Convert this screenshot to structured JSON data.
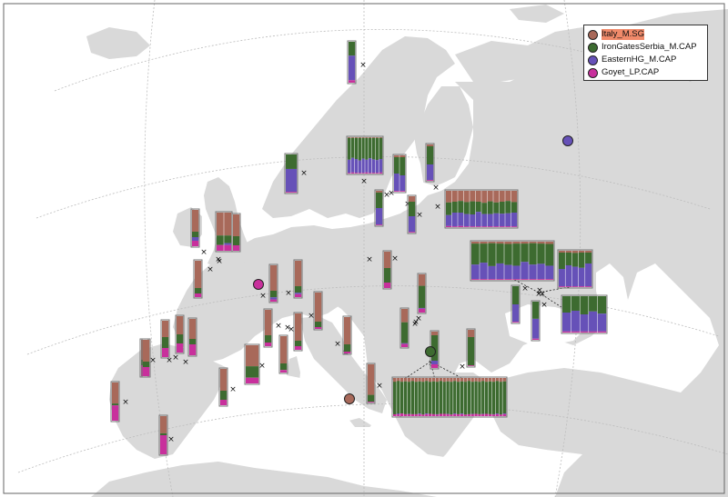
{
  "colors": {
    "background": "#ffffff",
    "land": "#d9d9d9",
    "graticule": "#bdbdbd",
    "cross": "#111111",
    "leader": "#222222",
    "bar_outline": "#777777"
  },
  "legend": {
    "items": [
      {
        "label": "Italy_M.SG",
        "color": "#a8695a",
        "highlighted": true
      },
      {
        "label": "IronGatesSerbia_M.CAP",
        "color": "#3d6b30",
        "highlighted": false
      },
      {
        "label": "EasternHG_M.CAP",
        "color": "#6651b8",
        "highlighted": false
      },
      {
        "label": "Goyet_LP.CAP",
        "color": "#c8309c",
        "highlighted": false
      }
    ]
  },
  "reference_points": [
    {
      "name": "reference-point-goyet",
      "color": "#c8309c"
    },
    {
      "name": "reference-point-eastern-hg",
      "color": "#6651b8"
    },
    {
      "name": "reference-point-iron-gates",
      "color": "#3d6b30"
    },
    {
      "name": "reference-point-italy",
      "color": "#a8695a"
    }
  ],
  "samples": [
    {
      "site": "north-norway",
      "fractions": [
        [
          0.0,
          0.34,
          0.6,
          0.06
        ]
      ]
    },
    {
      "site": "south-norway",
      "fractions": [
        [
          0.0,
          0.38,
          0.6,
          0.02
        ]
      ]
    },
    {
      "site": "sweden-central",
      "fractions": [
        [
          0.02,
          0.6,
          0.36,
          0.02
        ],
        [
          0.02,
          0.55,
          0.4,
          0.03
        ],
        [
          0.02,
          0.58,
          0.38,
          0.02
        ],
        [
          0.02,
          0.62,
          0.34,
          0.02
        ],
        [
          0.02,
          0.57,
          0.39,
          0.02
        ],
        [
          0.02,
          0.6,
          0.35,
          0.03
        ],
        [
          0.02,
          0.56,
          0.4,
          0.02
        ],
        [
          0.02,
          0.59,
          0.37,
          0.02
        ],
        [
          0.02,
          0.61,
          0.35,
          0.02
        ],
        [
          0.02,
          0.58,
          0.37,
          0.03
        ]
      ]
    },
    {
      "site": "sweden-gotland",
      "fractions": [
        [
          0.05,
          0.45,
          0.48,
          0.02
        ],
        [
          0.05,
          0.5,
          0.43,
          0.02
        ]
      ]
    },
    {
      "site": "estonia",
      "fractions": [
        [
          0.05,
          0.5,
          0.43,
          0.02
        ]
      ]
    },
    {
      "site": "sweden-south",
      "fractions": [
        [
          0.05,
          0.45,
          0.48,
          0.02
        ]
      ]
    },
    {
      "site": "latvia",
      "fractions": [
        [
          0.15,
          0.4,
          0.43,
          0.02
        ]
      ]
    },
    {
      "site": "baltic-big",
      "fractions": [
        [
          0.32,
          0.35,
          0.3,
          0.03
        ],
        [
          0.3,
          0.3,
          0.38,
          0.02
        ],
        [
          0.28,
          0.32,
          0.37,
          0.03
        ],
        [
          0.31,
          0.33,
          0.34,
          0.02
        ],
        [
          0.29,
          0.36,
          0.33,
          0.02
        ],
        [
          0.3,
          0.28,
          0.4,
          0.02
        ],
        [
          0.33,
          0.31,
          0.34,
          0.02
        ],
        [
          0.29,
          0.35,
          0.34,
          0.02
        ],
        [
          0.32,
          0.3,
          0.36,
          0.02
        ],
        [
          0.3,
          0.33,
          0.35,
          0.02
        ],
        [
          0.28,
          0.34,
          0.36,
          0.02
        ],
        [
          0.31,
          0.29,
          0.38,
          0.02
        ]
      ]
    },
    {
      "site": "ireland",
      "fractions": [
        [
          0.6,
          0.15,
          0.1,
          0.15
        ]
      ]
    },
    {
      "site": "britain-a",
      "fractions": [
        [
          0.6,
          0.25,
          0.0,
          0.15
        ],
        [
          0.6,
          0.2,
          0.05,
          0.15
        ]
      ]
    },
    {
      "site": "britain-b",
      "fractions": [
        [
          0.6,
          0.25,
          0.0,
          0.15
        ]
      ]
    },
    {
      "site": "france-brittany",
      "fractions": [
        [
          0.75,
          0.15,
          0.0,
          0.1
        ]
      ]
    },
    {
      "site": "france-paris",
      "fractions": [
        [
          0.7,
          0.18,
          0.06,
          0.06
        ]
      ]
    },
    {
      "site": "germany-west",
      "fractions": [
        [
          0.7,
          0.18,
          0.04,
          0.08
        ]
      ]
    },
    {
      "site": "poland",
      "fractions": [
        [
          0.45,
          0.4,
          0.0,
          0.15
        ]
      ]
    },
    {
      "site": "ukraine-big",
      "fractions": [
        [
          0.05,
          0.55,
          0.38,
          0.02
        ],
        [
          0.05,
          0.5,
          0.43,
          0.02
        ],
        [
          0.04,
          0.6,
          0.34,
          0.02
        ],
        [
          0.05,
          0.52,
          0.41,
          0.02
        ],
        [
          0.06,
          0.55,
          0.37,
          0.02
        ],
        [
          0.05,
          0.58,
          0.35,
          0.02
        ],
        [
          0.05,
          0.48,
          0.45,
          0.02
        ],
        [
          0.04,
          0.56,
          0.38,
          0.02
        ],
        [
          0.05,
          0.53,
          0.4,
          0.02
        ],
        [
          0.06,
          0.57,
          0.35,
          0.02
        ]
      ]
    },
    {
      "site": "ukraine-east",
      "fractions": [
        [
          0.05,
          0.45,
          0.48,
          0.02
        ],
        [
          0.05,
          0.35,
          0.58,
          0.02
        ],
        [
          0.06,
          0.38,
          0.54,
          0.02
        ],
        [
          0.05,
          0.42,
          0.51,
          0.02
        ],
        [
          0.05,
          0.3,
          0.63,
          0.02
        ]
      ]
    },
    {
      "site": "russia-south",
      "fractions": [
        [
          0.0,
          0.45,
          0.52,
          0.03
        ],
        [
          0.0,
          0.4,
          0.57,
          0.03
        ],
        [
          0.0,
          0.5,
          0.47,
          0.03
        ],
        [
          0.0,
          0.42,
          0.55,
          0.03
        ],
        [
          0.0,
          0.48,
          0.49,
          0.03
        ]
      ]
    },
    {
      "site": "ukraine-a",
      "fractions": [
        [
          0.0,
          0.5,
          0.48,
          0.02
        ]
      ]
    },
    {
      "site": "ukraine-b",
      "fractions": [
        [
          0.0,
          0.45,
          0.52,
          0.03
        ]
      ]
    },
    {
      "site": "hungary-north",
      "fractions": [
        [
          0.3,
          0.58,
          0.02,
          0.1
        ]
      ]
    },
    {
      "site": "hungary-south",
      "fractions": [
        [
          0.35,
          0.55,
          0.02,
          0.08
        ]
      ]
    },
    {
      "site": "austria",
      "fractions": [
        [
          0.8,
          0.15,
          0.0,
          0.05
        ]
      ]
    },
    {
      "site": "france-central-a",
      "fractions": [
        [
          0.7,
          0.2,
          0.0,
          0.1
        ]
      ]
    },
    {
      "site": "france-central-b",
      "fractions": [
        [
          0.75,
          0.15,
          0.0,
          0.1
        ]
      ]
    },
    {
      "site": "switzerland",
      "fractions": [
        [
          0.75,
          0.18,
          0.0,
          0.07
        ]
      ]
    },
    {
      "site": "italy-north",
      "fractions": [
        [
          0.75,
          0.2,
          0.0,
          0.05
        ]
      ]
    },
    {
      "site": "france-south-a",
      "fractions": [
        [
          0.55,
          0.3,
          0.0,
          0.15
        ]
      ]
    },
    {
      "site": "france-south-b",
      "fractions": [
        [
          0.6,
          0.25,
          0.0,
          0.15
        ]
      ]
    },
    {
      "site": "spain-north-a",
      "fractions": [
        [
          0.55,
          0.15,
          0.0,
          0.3
        ]
      ]
    },
    {
      "site": "spain-north-b",
      "fractions": [
        [
          0.45,
          0.3,
          0.0,
          0.25
        ]
      ]
    },
    {
      "site": "spain-north-c",
      "fractions": [
        [
          0.5,
          0.25,
          0.0,
          0.25
        ]
      ]
    },
    {
      "site": "spain-north-d",
      "fractions": [
        [
          0.55,
          0.15,
          0.0,
          0.3
        ]
      ]
    },
    {
      "site": "spain-east",
      "fractions": [
        [
          0.6,
          0.15,
          0.0,
          0.25
        ]
      ]
    },
    {
      "site": "portugal",
      "fractions": [
        [
          0.55,
          0.05,
          0.0,
          0.4
        ]
      ]
    },
    {
      "site": "spain-south",
      "fractions": [
        [
          0.45,
          0.05,
          0.0,
          0.5
        ]
      ]
    },
    {
      "site": "croatia",
      "fractions": [
        [
          0.8,
          0.18,
          0.0,
          0.02
        ]
      ]
    },
    {
      "site": "serbia-south",
      "fractions": [
        [
          0.6,
          0.38,
          0.0,
          0.02
        ]
      ]
    },
    {
      "site": "serbia-west",
      "fractions": [
        [
          0.2,
          0.78,
          0.0,
          0.02
        ]
      ]
    },
    {
      "site": "romania",
      "fractions": [
        [
          0.1,
          0.7,
          0.1,
          0.1
        ]
      ]
    },
    {
      "site": "iron-gates-big",
      "fractions": [
        [
          0.1,
          0.85,
          0.0,
          0.05
        ],
        [
          0.08,
          0.85,
          0.02,
          0.05
        ],
        [
          0.1,
          0.83,
          0.0,
          0.07
        ],
        [
          0.09,
          0.86,
          0.0,
          0.05
        ],
        [
          0.1,
          0.84,
          0.01,
          0.05
        ],
        [
          0.08,
          0.87,
          0.0,
          0.05
        ],
        [
          0.1,
          0.85,
          0.0,
          0.05
        ],
        [
          0.09,
          0.84,
          0.02,
          0.05
        ],
        [
          0.1,
          0.86,
          0.0,
          0.04
        ],
        [
          0.08,
          0.85,
          0.02,
          0.05
        ],
        [
          0.1,
          0.84,
          0.0,
          0.06
        ],
        [
          0.09,
          0.86,
          0.0,
          0.05
        ],
        [
          0.1,
          0.85,
          0.01,
          0.04
        ],
        [
          0.08,
          0.86,
          0.0,
          0.06
        ],
        [
          0.1,
          0.84,
          0.0,
          0.06
        ],
        [
          0.09,
          0.85,
          0.01,
          0.05
        ],
        [
          0.1,
          0.86,
          0.0,
          0.04
        ],
        [
          0.08,
          0.85,
          0.02,
          0.05
        ],
        [
          0.1,
          0.85,
          0.0,
          0.05
        ],
        [
          0.09,
          0.84,
          0.02,
          0.05
        ],
        [
          0.1,
          0.86,
          0.0,
          0.04
        ],
        [
          0.08,
          0.87,
          0.0,
          0.05
        ],
        [
          0.1,
          0.84,
          0.01,
          0.05
        ],
        [
          0.09,
          0.85,
          0.0,
          0.06
        ],
        [
          0.1,
          0.85,
          0.0,
          0.05
        ],
        [
          0.08,
          0.86,
          0.01,
          0.05
        ],
        [
          0.1,
          0.84,
          0.0,
          0.06
        ],
        [
          0.09,
          0.86,
          0.0,
          0.05
        ],
        [
          0.1,
          0.85,
          0.01,
          0.04
        ],
        [
          0.08,
          0.85,
          0.02,
          0.05
        ],
        [
          0.1,
          0.86,
          0.0,
          0.04
        ],
        [
          0.09,
          0.84,
          0.02,
          0.05
        ]
      ]
    }
  ]
}
